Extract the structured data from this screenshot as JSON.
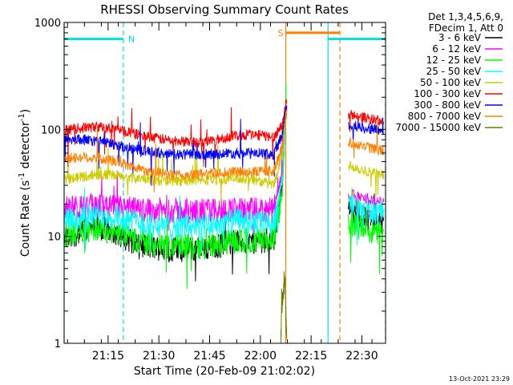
{
  "chart_data": {
    "type": "line",
    "title": "RHESSI Observing Summary Count Rates",
    "xlabel": "Start Time (20-Feb-09 21:02:02)",
    "ylabel_main": "Count Rate (s",
    "ylabel_sup1": "-1",
    "ylabel_mid": " detector",
    "ylabel_sup2": "-1",
    "ylabel_end": ")",
    "x_unit": "minutes after 21:02:02",
    "x_range": [
      0,
      95
    ],
    "y_scale": "log",
    "ylim": [
      1,
      1000
    ],
    "x_ticks": [
      {
        "label": "21:15",
        "value": 13
      },
      {
        "label": "21:30",
        "value": 28
      },
      {
        "label": "21:45",
        "value": 43
      },
      {
        "label": "22:00",
        "value": 58
      },
      {
        "label": "22:15",
        "value": 73
      },
      {
        "label": "22:30",
        "value": 88
      }
    ],
    "y_ticks": [
      {
        "label": "1",
        "value": 1
      },
      {
        "label": "10",
        "value": 10
      },
      {
        "label": "100",
        "value": 100
      },
      {
        "label": "1000",
        "value": 1000
      }
    ],
    "legend_placement": "right",
    "legend_header": [
      "Det 1,3,4,5,6,9,",
      "FDecim 1, Att 0"
    ],
    "series": [
      {
        "name": "3 - 6 keV",
        "color": "#000000",
        "x": [
          0,
          5,
          10,
          15,
          20,
          25,
          30,
          35,
          40,
          45,
          50,
          55,
          62,
          64.5,
          65.5,
          84,
          88,
          92,
          94.5
        ],
        "y": [
          9.5,
          11,
          12,
          11,
          9,
          8,
          7.6,
          7.5,
          7.6,
          8,
          9,
          8.8,
          9.5,
          30,
          150,
          17,
          15,
          14,
          13.5
        ]
      },
      {
        "name": "6 - 12 keV",
        "color": "#ff00ff",
        "x": [
          0,
          5,
          10,
          15,
          20,
          25,
          30,
          35,
          40,
          45,
          50,
          55,
          62,
          64.5,
          65.5,
          84,
          88,
          92,
          94.5
        ],
        "y": [
          18,
          18.5,
          19,
          18.5,
          18,
          17.5,
          17.5,
          17.2,
          17.2,
          17.5,
          17.8,
          17.5,
          17.5,
          40,
          160,
          25,
          23,
          22,
          21
        ]
      },
      {
        "name": "12 - 25 keV",
        "color": "#00ff00",
        "x": [
          0,
          5,
          10,
          15,
          20,
          25,
          30,
          35,
          40,
          45,
          50,
          55,
          62,
          64.5,
          65.5,
          84,
          88,
          92,
          94.5
        ],
        "y": [
          10,
          11.5,
          12,
          11,
          9.5,
          8.5,
          8,
          8,
          8,
          8.3,
          9,
          9,
          9.5,
          25,
          140,
          13,
          12,
          11,
          10.5
        ]
      },
      {
        "name": "25 - 50 keV",
        "color": "#00ffff",
        "x": [
          0,
          5,
          10,
          15,
          20,
          25,
          30,
          35,
          40,
          45,
          50,
          55,
          62,
          64.5,
          65.5,
          84,
          88,
          92,
          94.5
        ],
        "y": [
          14,
          15,
          16,
          15.5,
          14,
          13,
          12.5,
          12.5,
          12.5,
          13,
          14,
          13.5,
          13,
          35,
          150,
          20,
          18,
          17,
          16
        ]
      },
      {
        "name": "50 - 100 keV",
        "color": "#cccc00",
        "x": [
          0,
          5,
          10,
          15,
          20,
          25,
          30,
          35,
          40,
          45,
          50,
          55,
          62,
          64.5,
          65.5,
          84,
          88,
          92,
          94.5
        ],
        "y": [
          34,
          36,
          38,
          37,
          35,
          34,
          33,
          33,
          33.5,
          34,
          35,
          34.5,
          30,
          60,
          160,
          47,
          42,
          39,
          37
        ]
      },
      {
        "name": "100 - 300 keV",
        "color": "#ff0000",
        "x": [
          0,
          5,
          10,
          15,
          20,
          25,
          30,
          35,
          40,
          45,
          50,
          55,
          62,
          64.5,
          65.5,
          84,
          88,
          92,
          94.5
        ],
        "y": [
          98,
          103,
          106,
          100,
          92,
          85,
          80,
          77,
          76,
          80,
          87,
          90,
          85,
          110,
          175,
          140,
          130,
          122,
          118
        ]
      },
      {
        "name": "300 - 800 keV",
        "color": "#0000ff",
        "x": [
          0,
          5,
          10,
          15,
          20,
          25,
          30,
          35,
          40,
          45,
          50,
          55,
          62,
          64.5,
          65.5,
          84,
          88,
          92,
          94.5
        ],
        "y": [
          82,
          80,
          78,
          72,
          66,
          62,
          59,
          58,
          58,
          59,
          60,
          60,
          58,
          90,
          150,
          110,
          105,
          100,
          96
        ]
      },
      {
        "name": "800 - 7000 keV",
        "color": "#ff8000",
        "x": [
          0,
          5,
          10,
          15,
          20,
          25,
          30,
          35,
          40,
          45,
          50,
          55,
          62,
          64.5,
          65.5,
          84,
          88,
          92,
          94.5
        ],
        "y": [
          53,
          55,
          54,
          50,
          45,
          41,
          38,
          37,
          38,
          39,
          40,
          40,
          41,
          70,
          140,
          75,
          70,
          65,
          62
        ]
      },
      {
        "name": "7000 - 15000 keV",
        "color": "#608000",
        "x": [
          64,
          64.6,
          65.2,
          65.8
        ],
        "y": [
          1,
          3,
          4,
          1
        ]
      }
    ],
    "attenuator_bars": [
      {
        "label": "N",
        "color": "#00e0e0",
        "x_start": 0,
        "x_end": 17.5,
        "level": 700
      },
      {
        "label": "S",
        "color": "#ff8000",
        "x_start": 65.5,
        "x_end": 81.5,
        "level": 800
      },
      {
        "label": "",
        "color": "#00e0e0",
        "x_start": 78,
        "x_end": 95,
        "level": 700
      }
    ],
    "vertical_markers": [
      {
        "x": 0,
        "color": "#00e0e0",
        "style": "solid"
      },
      {
        "x": 17.5,
        "color": "#00e0e0",
        "style": "dashed"
      },
      {
        "x": 65.5,
        "color": "#ff8000",
        "style": "solid"
      },
      {
        "x": 78,
        "color": "#00e0e0",
        "style": "solid"
      },
      {
        "x": 81.5,
        "color": "#ff8000",
        "style": "dashed"
      },
      {
        "x": 95,
        "color": "#00e0e0",
        "style": "dashed"
      }
    ],
    "timestamp": "13-Oct-2021 23:29"
  }
}
